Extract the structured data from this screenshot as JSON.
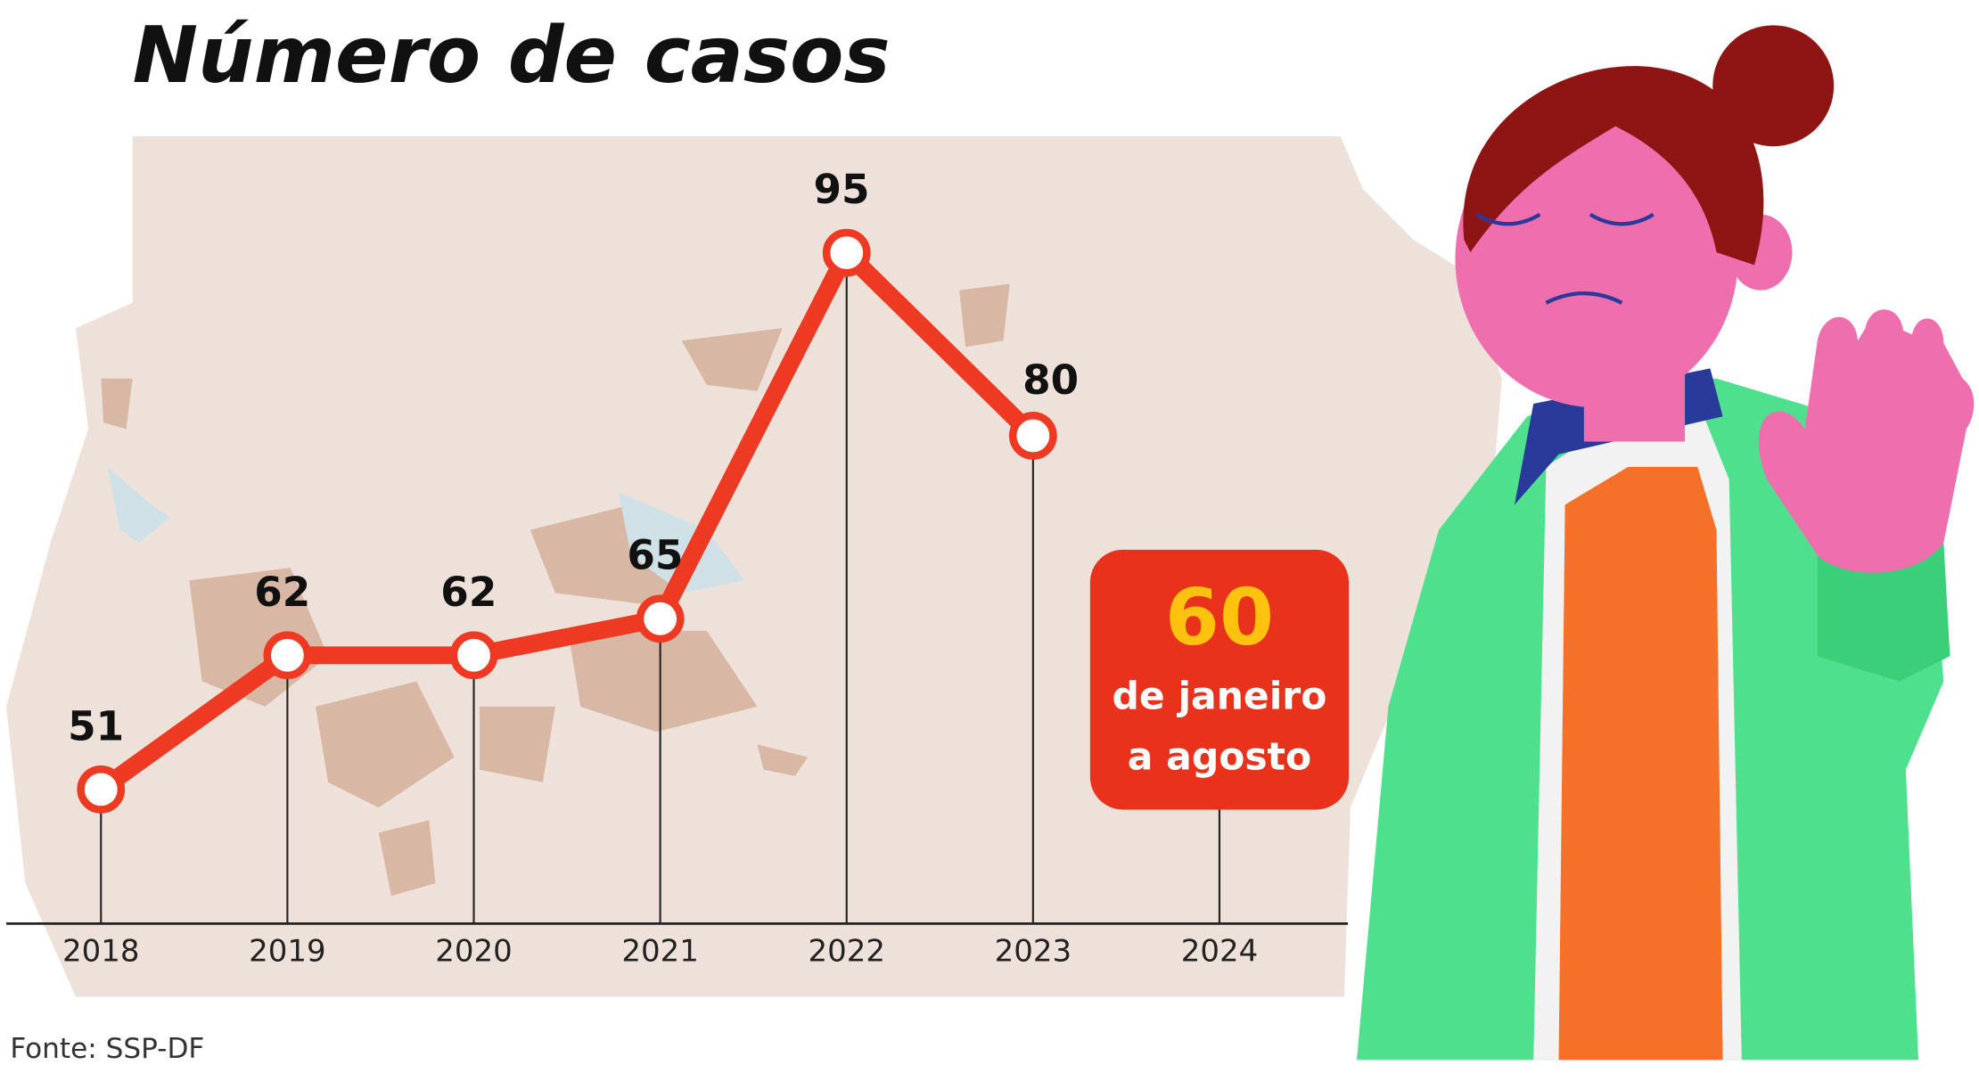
{
  "chart_data": {
    "type": "line",
    "title": "Número de casos",
    "categories": [
      "2018",
      "2019",
      "2020",
      "2021",
      "2022",
      "2023",
      "2024"
    ],
    "series": [
      {
        "color": "#ee3a22",
        "values": [
          51,
          62,
          62,
          65,
          95,
          80,
          null
        ]
      }
    ],
    "ylim": [
      40,
      100
    ],
    "annotation": {
      "value": 60,
      "lines": [
        "de janeiro",
        "a agosto"
      ],
      "color": "#e8321c",
      "value_color": "#ffc20e"
    },
    "source": "Fonte: SSP-DF"
  }
}
